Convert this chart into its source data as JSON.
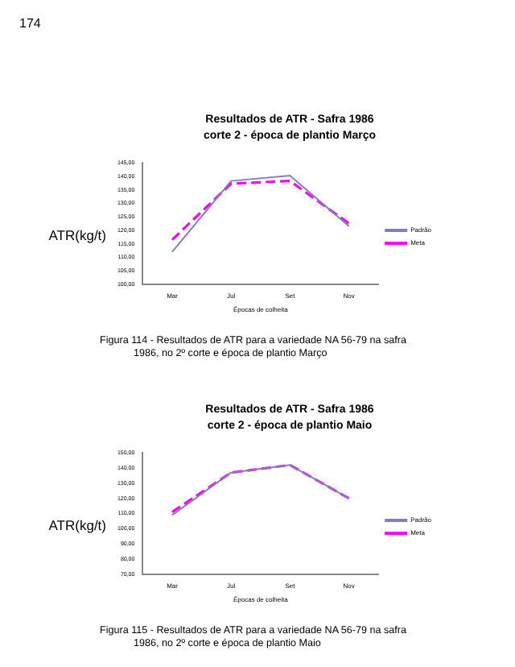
{
  "chart_data": [
    {
      "type": "line",
      "title": "Resultados de ATR - Safra 1986",
      "subtitle": "corte 2 - época de plantio Março",
      "xlabel": "Épocas de colheita",
      "ylabel": "ATR(kg/t)",
      "categories": [
        "Mar",
        "Jul",
        "Set",
        "Nov"
      ],
      "series": [
        {
          "name": "Padrão",
          "color": "#8080c0",
          "values": [
            112,
            138.3,
            140.3,
            121.5
          ],
          "line_style": "solid"
        },
        {
          "name": "Meta",
          "color": "#ff00ff",
          "values": [
            116.5,
            137.3,
            138.3,
            122.5
          ],
          "line_style": "dashed"
        }
      ],
      "ylim": [
        100,
        145
      ],
      "yticks": [
        {
          "value": 100,
          "label": "100,00"
        },
        {
          "value": 105,
          "label": "105,00"
        },
        {
          "value": 110,
          "label": "110,00"
        },
        {
          "value": 115,
          "label": "115,00"
        },
        {
          "value": 120,
          "label": "120,00"
        },
        {
          "value": 125,
          "label": "125,00"
        },
        {
          "value": 130,
          "label": "130,00"
        },
        {
          "value": 135,
          "label": "135,00"
        },
        {
          "value": 140,
          "label": "140,00"
        },
        {
          "value": 145,
          "label": "145,00"
        }
      ],
      "grid": false,
      "legend": "right",
      "marker": "none",
      "annotations": [
        "174",
        "Figura 114 - Resultados de ATR para a variedade NA 56-79 na safra 1986, no 2º corte e época de plantio Março"
      ]
    },
    {
      "type": "line",
      "title": "Resultados de ATR - Safra 1986",
      "subtitle": "corte 2 - época de plantio Maio",
      "xlabel": "Épocas de colheita",
      "ylabel": "ATR(kg/t)",
      "categories": [
        "Mar",
        "Jul",
        "Set",
        "Nov"
      ],
      "series": [
        {
          "name": "Padrão",
          "color": "#8080c0",
          "values": [
            109,
            137,
            142,
            120
          ],
          "line_style": "solid"
        },
        {
          "name": "Meta",
          "color": "#ff00ff",
          "values": [
            111,
            137,
            142,
            120
          ],
          "line_style": "dashed"
        }
      ],
      "ylim": [
        70,
        150
      ],
      "yticks": [
        {
          "value": 70,
          "label": "70,00"
        },
        {
          "value": 80,
          "label": "80,00"
        },
        {
          "value": 90,
          "label": "90,00"
        },
        {
          "value": 100,
          "label": "100,00"
        },
        {
          "value": 110,
          "label": "110,00"
        },
        {
          "value": 120,
          "label": "120,00"
        },
        {
          "value": 130,
          "label": "130,00"
        },
        {
          "value": 140,
          "label": "140,00"
        },
        {
          "value": 150,
          "label": "150,00"
        }
      ],
      "grid": false,
      "legend": "right",
      "marker": "none",
      "annotations": [
        "Figura 115 - Resultados de ATR para a variedade NA 56-79 na safra 1986, no 2º corte e época de plantio Maio"
      ]
    }
  ]
}
